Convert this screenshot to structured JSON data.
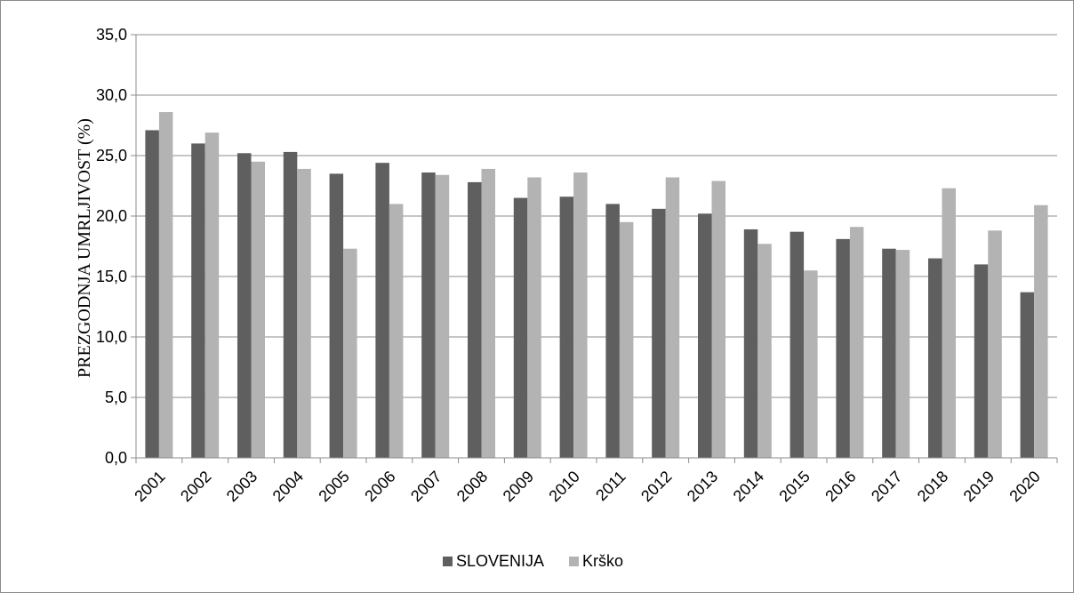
{
  "chart_data": {
    "type": "bar",
    "title": "",
    "xlabel": "",
    "ylabel": "PREZGODNJA UMRLJIVOST (%)",
    "ylim": [
      0,
      35
    ],
    "yticks": [
      "0,0",
      "5,0",
      "10,0",
      "15,0",
      "20,0",
      "25,0",
      "30,0",
      "35,0"
    ],
    "grid": true,
    "legend_position": "bottom",
    "categories": [
      "2001",
      "2002",
      "2003",
      "2004",
      "2005",
      "2006",
      "2007",
      "2008",
      "2009",
      "2010",
      "2011",
      "2012",
      "2013",
      "2014",
      "2015",
      "2016",
      "2017",
      "2018",
      "2019",
      "2020"
    ],
    "series": [
      {
        "name": "SLOVENIJA",
        "color": "#5f5f5f",
        "values": [
          27.1,
          26.0,
          25.2,
          25.3,
          23.5,
          24.4,
          23.6,
          22.8,
          21.5,
          21.6,
          21.0,
          20.6,
          20.2,
          18.9,
          18.7,
          18.1,
          17.3,
          16.5,
          16.0,
          13.7
        ]
      },
      {
        "name": "Krško",
        "color": "#b3b3b3",
        "values": [
          28.6,
          26.9,
          24.5,
          23.9,
          17.3,
          21.0,
          23.4,
          23.9,
          23.2,
          23.6,
          19.5,
          23.2,
          22.9,
          17.7,
          15.5,
          19.1,
          17.2,
          22.3,
          18.8,
          20.9
        ]
      }
    ]
  }
}
